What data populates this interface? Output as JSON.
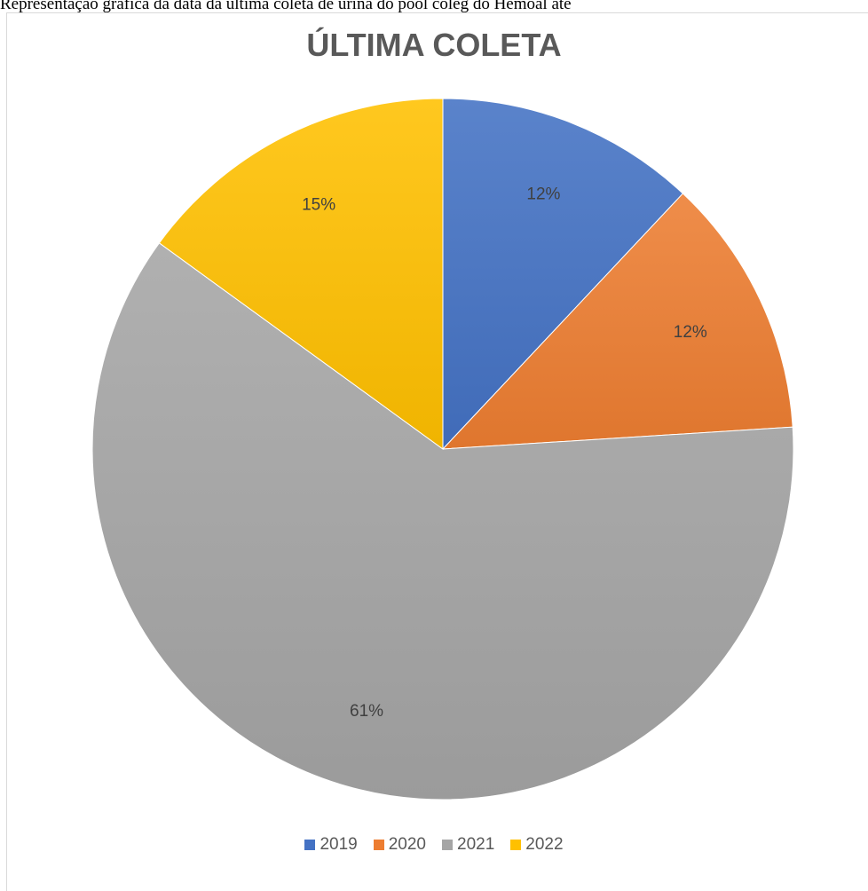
{
  "caption": "Representação gráfica da data da última coleta de urina do pool coleg do Hemoal até",
  "chart_data": {
    "type": "pie",
    "title": "ÚLTIMA COLETA",
    "categories": [
      "2019",
      "2020",
      "2021",
      "2022"
    ],
    "values": [
      12,
      12,
      61,
      15
    ],
    "labels": [
      "12%",
      "12%",
      "61%",
      "15%"
    ],
    "colors": [
      "#4472c4",
      "#ed7d31",
      "#a5a5a5",
      "#ffc000"
    ],
    "legend_position": "bottom",
    "start_angle": "12 o'clock",
    "direction": "clockwise"
  }
}
